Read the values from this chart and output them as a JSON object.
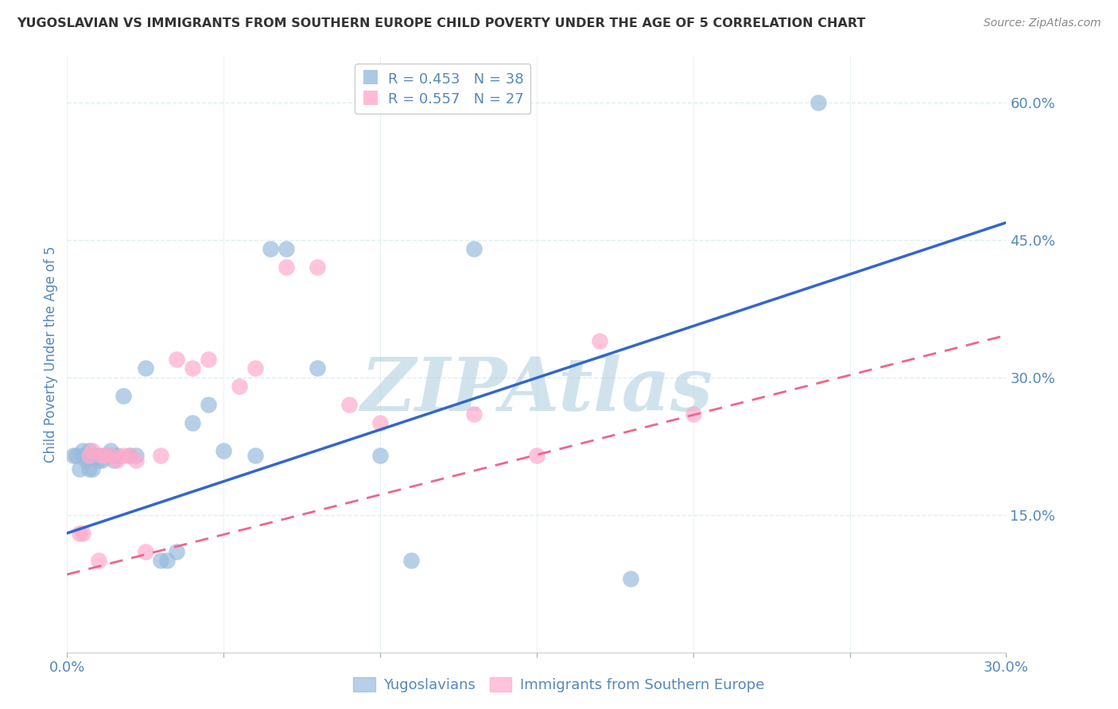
{
  "title": "YUGOSLAVIAN VS IMMIGRANTS FROM SOUTHERN EUROPE CHILD POVERTY UNDER THE AGE OF 5 CORRELATION CHART",
  "source": "Source: ZipAtlas.com",
  "ylabel": "Child Poverty Under the Age of 5",
  "xlim": [
    0.0,
    0.3
  ],
  "ylim": [
    0.0,
    0.65
  ],
  "ytick_labels": [
    "15.0%",
    "30.0%",
    "45.0%",
    "60.0%"
  ],
  "ytick_values": [
    0.15,
    0.3,
    0.45,
    0.6
  ],
  "xtick_values": [
    0.0,
    0.05,
    0.1,
    0.15,
    0.2,
    0.25,
    0.3
  ],
  "xtick_labels_show": {
    "0": "0.0%",
    "6": "30.0%"
  },
  "blue_color": "#99BBDD",
  "blue_line_color": "#3366CC",
  "pink_color": "#FFAACC",
  "pink_line_color": "#EE6688",
  "legend_blue_r": "R = 0.453",
  "legend_blue_n": "N = 38",
  "legend_pink_r": "R = 0.557",
  "legend_pink_n": "N = 27",
  "legend_label_blue": "Yugoslavians",
  "legend_label_pink": "Immigrants from Southern Europe",
  "watermark": "ZIPAtlas",
  "blue_line_intercept": 0.13,
  "blue_line_slope": 1.13,
  "pink_line_intercept": 0.085,
  "pink_line_slope": 0.87,
  "blue_x": [
    0.002,
    0.003,
    0.004,
    0.005,
    0.005,
    0.006,
    0.007,
    0.007,
    0.008,
    0.008,
    0.009,
    0.01,
    0.01,
    0.011,
    0.012,
    0.013,
    0.014,
    0.015,
    0.016,
    0.018,
    0.02,
    0.022,
    0.025,
    0.03,
    0.032,
    0.035,
    0.04,
    0.045,
    0.05,
    0.06,
    0.065,
    0.07,
    0.08,
    0.1,
    0.11,
    0.13,
    0.18,
    0.24
  ],
  "blue_y": [
    0.215,
    0.215,
    0.2,
    0.215,
    0.22,
    0.21,
    0.22,
    0.2,
    0.215,
    0.2,
    0.215,
    0.21,
    0.215,
    0.21,
    0.215,
    0.215,
    0.22,
    0.21,
    0.215,
    0.28,
    0.215,
    0.215,
    0.31,
    0.1,
    0.1,
    0.11,
    0.25,
    0.27,
    0.22,
    0.215,
    0.44,
    0.44,
    0.31,
    0.215,
    0.1,
    0.44,
    0.08,
    0.6
  ],
  "pink_x": [
    0.004,
    0.005,
    0.007,
    0.008,
    0.01,
    0.011,
    0.012,
    0.014,
    0.016,
    0.018,
    0.02,
    0.022,
    0.025,
    0.03,
    0.035,
    0.04,
    0.045,
    0.055,
    0.06,
    0.07,
    0.08,
    0.09,
    0.1,
    0.13,
    0.15,
    0.17,
    0.2
  ],
  "pink_y": [
    0.13,
    0.13,
    0.215,
    0.22,
    0.1,
    0.215,
    0.215,
    0.215,
    0.21,
    0.215,
    0.215,
    0.21,
    0.11,
    0.215,
    0.32,
    0.31,
    0.32,
    0.29,
    0.31,
    0.42,
    0.42,
    0.27,
    0.25,
    0.26,
    0.215,
    0.34,
    0.26
  ],
  "title_color": "#333333",
  "axis_color": "#5588BB",
  "grid_color": "#DDEEEE",
  "background_color": "#FFFFFF"
}
